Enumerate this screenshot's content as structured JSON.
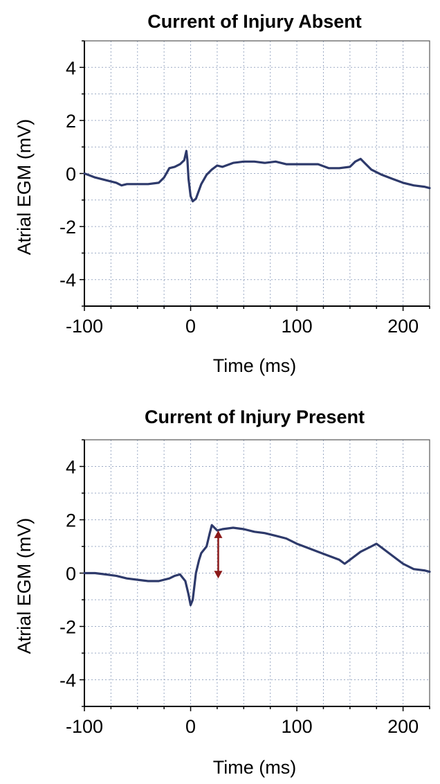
{
  "chart_data": [
    {
      "type": "line",
      "title": "Current of Injury Absent",
      "xlabel": "Time (ms)",
      "ylabel": "Atrial EGM (mV)",
      "xlim": [
        -100,
        225
      ],
      "ylim": [
        -5,
        5
      ],
      "xticks": [
        -100,
        0,
        100,
        200
      ],
      "yticks": [
        4,
        2,
        0,
        -2,
        -4
      ],
      "xtick_labels": [
        "-100",
        "0",
        "100",
        "200"
      ],
      "ytick_labels": [
        "4",
        "2",
        "0",
        "-2",
        "-4"
      ],
      "grid": true,
      "series": [
        {
          "x": [
            -100,
            -90,
            -80,
            -70,
            -65,
            -60,
            -50,
            -40,
            -30,
            -25,
            -20,
            -15,
            -10,
            -6,
            -4,
            -3,
            -2,
            0,
            2,
            5,
            10,
            15,
            20,
            25,
            30,
            40,
            50,
            60,
            70,
            80,
            90,
            100,
            110,
            120,
            130,
            140,
            150,
            155,
            160,
            165,
            170,
            180,
            190,
            200,
            210,
            220,
            225
          ],
          "y": [
            0.0,
            -0.15,
            -0.25,
            -0.35,
            -0.45,
            -0.4,
            -0.4,
            -0.4,
            -0.35,
            -0.15,
            0.2,
            0.25,
            0.35,
            0.5,
            0.85,
            0.5,
            -0.2,
            -0.85,
            -1.05,
            -0.95,
            -0.4,
            -0.05,
            0.15,
            0.3,
            0.25,
            0.4,
            0.45,
            0.45,
            0.4,
            0.45,
            0.35,
            0.35,
            0.35,
            0.35,
            0.2,
            0.2,
            0.25,
            0.45,
            0.55,
            0.35,
            0.15,
            -0.05,
            -0.2,
            -0.35,
            -0.45,
            -0.5,
            -0.55
          ]
        }
      ]
    },
    {
      "type": "line",
      "title": "Current of Injury Present",
      "xlabel": "Time (ms)",
      "ylabel": "Atrial EGM (mV)",
      "xlim": [
        -100,
        225
      ],
      "ylim": [
        -5,
        5
      ],
      "xticks": [
        -100,
        0,
        100,
        200
      ],
      "yticks": [
        4,
        2,
        0,
        -2,
        -4
      ],
      "xtick_labels": [
        "-100",
        "0",
        "100",
        "200"
      ],
      "ytick_labels": [
        "4",
        "2",
        "0",
        "-2",
        "-4"
      ],
      "grid": true,
      "series": [
        {
          "x": [
            -100,
            -90,
            -80,
            -70,
            -60,
            -50,
            -40,
            -30,
            -20,
            -15,
            -10,
            -5,
            -2,
            0,
            2,
            5,
            8,
            10,
            15,
            18,
            20,
            25,
            30,
            40,
            50,
            60,
            70,
            80,
            90,
            100,
            110,
            120,
            130,
            140,
            145,
            150,
            160,
            170,
            175,
            180,
            190,
            200,
            210,
            220,
            225
          ],
          "y": [
            0.0,
            0.0,
            -0.05,
            -0.1,
            -0.2,
            -0.25,
            -0.3,
            -0.3,
            -0.2,
            -0.1,
            -0.05,
            -0.3,
            -0.8,
            -1.2,
            -1.0,
            0.0,
            0.5,
            0.75,
            1.0,
            1.5,
            1.8,
            1.6,
            1.65,
            1.7,
            1.65,
            1.55,
            1.5,
            1.4,
            1.3,
            1.1,
            0.95,
            0.8,
            0.65,
            0.5,
            0.35,
            0.5,
            0.8,
            1.0,
            1.1,
            0.95,
            0.65,
            0.35,
            0.15,
            0.1,
            0.05
          ]
        }
      ],
      "annotations": [
        {
          "type": "double-arrow",
          "x": 26,
          "y_top": 1.6,
          "y_bottom": -0.2,
          "color": "#8b1a1a"
        }
      ]
    }
  ],
  "colors": {
    "trace": "#2e3a6b",
    "arrow": "#8b1a1a",
    "grid": "#9aa9c4"
  }
}
